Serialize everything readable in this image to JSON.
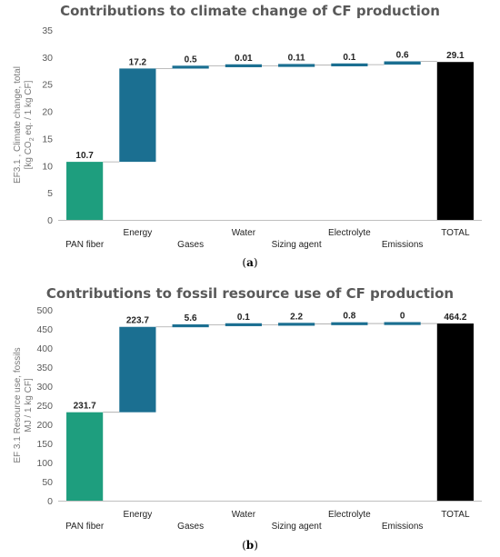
{
  "chart_data": [
    {
      "type": "bar",
      "subtype": "waterfall",
      "title": "Contributions to climate change of CF production",
      "ylabel_line1": "EF3.1 , Climate change, total",
      "ylabel_line2_pre": "[kg CO",
      "ylabel_line2_sub": "2",
      "ylabel_line2_post": " eq. / 1 kg CF]",
      "panel_label": "a",
      "ylim": [
        0,
        35
      ],
      "yticks": [
        "0",
        "5",
        "10",
        "15",
        "20",
        "25",
        "30",
        "35"
      ],
      "categories": [
        "PAN fiber",
        "Energy",
        "Gases",
        "Water",
        "Sizing agent",
        "Electrolyte",
        "Emissions",
        "TOTAL"
      ],
      "values": [
        10.7,
        17.2,
        0.5,
        0.01,
        0.11,
        0.1,
        0.6,
        29.1
      ],
      "labels": [
        "10.7",
        "17.2",
        "0.5",
        "0.01",
        "0.11",
        "0.1",
        "0.6",
        "29.1"
      ],
      "colors": [
        "#1e9e7e",
        "#1b6f91",
        "#1b6f91",
        "#1b6f91",
        "#1b6f91",
        "#1b6f91",
        "#1b6f91",
        "#000000"
      ],
      "grid": false,
      "legend": "none"
    },
    {
      "type": "bar",
      "subtype": "waterfall",
      "title": "Contributions to fossil resource use of CF production",
      "ylabel_line1": "EF 3.1 Resource use, fossils",
      "ylabel_line2_pre": "MJ / 1 kg CF]",
      "ylabel_line2_sub": "",
      "ylabel_line2_post": "",
      "panel_label": "b",
      "ylim": [
        0,
        500
      ],
      "yticks": [
        "0",
        "50",
        "100",
        "150",
        "200",
        "250",
        "300",
        "350",
        "400",
        "450",
        "500"
      ],
      "categories": [
        "PAN fiber",
        "Energy",
        "Gases",
        "Water",
        "Sizing agent",
        "Electrolyte",
        "Emissions",
        "TOTAL"
      ],
      "values": [
        231.7,
        223.7,
        5.6,
        0.1,
        2.2,
        0.8,
        0,
        464.2
      ],
      "labels": [
        "231.7",
        "223.7",
        "5.6",
        "0.1",
        "2.2",
        "0.8",
        "0",
        "464.2"
      ],
      "colors": [
        "#1e9e7e",
        "#1b6f91",
        "#1b6f91",
        "#1b6f91",
        "#1b6f91",
        "#1b6f91",
        "#1b6f91",
        "#000000"
      ],
      "grid": false,
      "legend": "none"
    }
  ]
}
